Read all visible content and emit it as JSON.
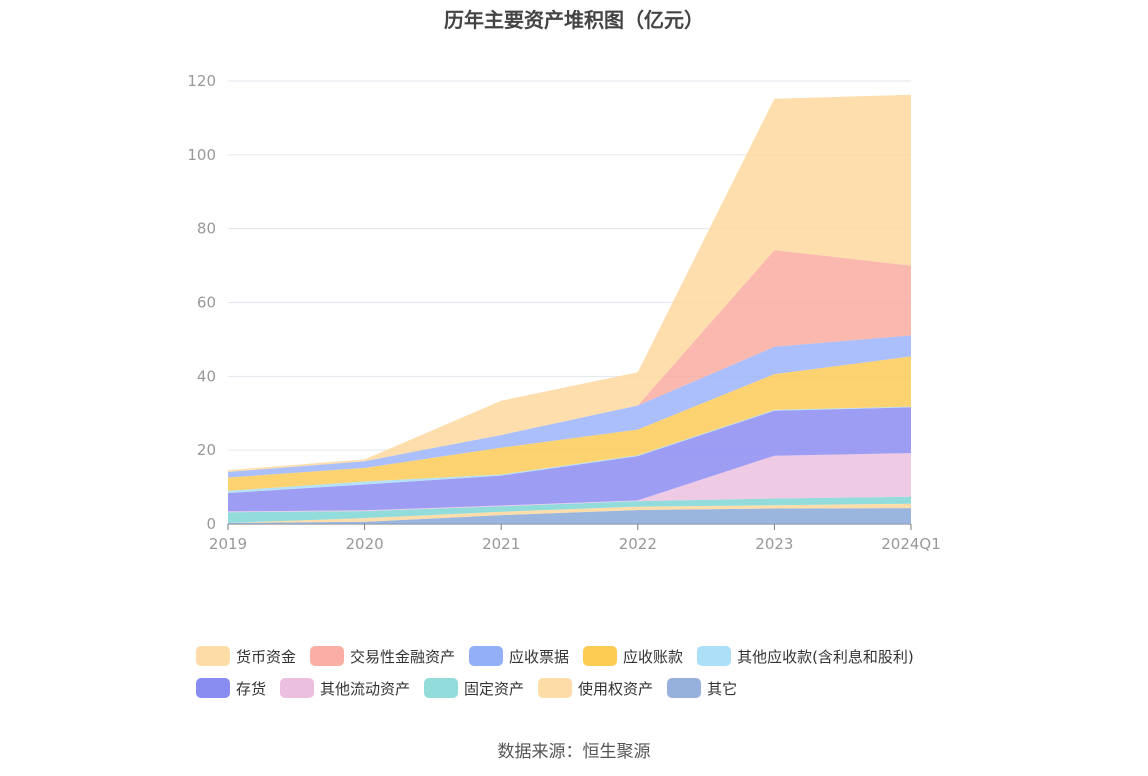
{
  "chart_data": {
    "type": "area",
    "stacked": true,
    "title": "历年主要资产堆积图（亿元）",
    "categories": [
      "2019",
      "2020",
      "2021",
      "2022",
      "2023",
      "2024Q1"
    ],
    "ylim": [
      0,
      120
    ],
    "yticks": [
      0,
      20,
      40,
      60,
      80,
      100,
      120
    ],
    "grid": true,
    "legend_position": "bottom",
    "series": [
      {
        "name": "其它",
        "color": "#8aa9d8",
        "values": [
          0.3,
          0.6,
          2.4,
          3.8,
          4.2,
          4.3
        ]
      },
      {
        "name": "使用权资产",
        "color": "#fdd79a",
        "values": [
          0.0,
          1.0,
          0.9,
          0.9,
          0.9,
          1.2
        ]
      },
      {
        "name": "固定资产",
        "color": "#80d6d6",
        "values": [
          2.9,
          1.9,
          1.5,
          1.5,
          1.8,
          1.9
        ]
      },
      {
        "name": "其他流动资产",
        "color": "#ebc1e0",
        "values": [
          0.2,
          0.2,
          0.2,
          0.2,
          11.6,
          11.8
        ]
      },
      {
        "name": "存货",
        "color": "#8c8cf2",
        "values": [
          5.0,
          7.0,
          8.1,
          12.0,
          12.2,
          12.4
        ]
      },
      {
        "name": "其他应收款(含利息和股利)",
        "color": "#a8dcf6",
        "values": [
          0.6,
          0.8,
          0.3,
          0.2,
          0.2,
          0.2
        ]
      },
      {
        "name": "应收账款",
        "color": "#fdca58",
        "values": [
          3.6,
          3.7,
          7.3,
          7.0,
          9.7,
          13.6
        ]
      },
      {
        "name": "应收票据",
        "color": "#9cb4fb",
        "values": [
          1.5,
          1.8,
          3.4,
          6.5,
          7.4,
          5.7
        ]
      },
      {
        "name": "交易性金融资产",
        "color": "#f9aba0",
        "values": [
          0.0,
          0.0,
          0.0,
          0.0,
          26.2,
          18.9
        ]
      },
      {
        "name": "货币资金",
        "color": "#fdd89d",
        "values": [
          0.5,
          0.5,
          9.3,
          9.0,
          41.0,
          46.3
        ]
      }
    ]
  },
  "legend": {
    "row1": [
      {
        "label": "货币资金",
        "color": "#fdd89d"
      },
      {
        "label": "交易性金融资产",
        "color": "#f9a59a"
      },
      {
        "label": "应收票据",
        "color": "#87a6f7"
      },
      {
        "label": "应收账款",
        "color": "#fcc63f"
      },
      {
        "label": "其他应收款(含利息和股利)",
        "color": "#a4dcf8"
      }
    ],
    "row2": [
      {
        "label": "存货",
        "color": "#7b7ff0"
      },
      {
        "label": "其他流动资产",
        "color": "#e8b8dc"
      },
      {
        "label": "固定资产",
        "color": "#86d8d8"
      },
      {
        "label": "使用权资产",
        "color": "#fdd89d"
      },
      {
        "label": "其它",
        "color": "#8aa9d8"
      }
    ]
  },
  "source": "数据来源：恒生聚源"
}
